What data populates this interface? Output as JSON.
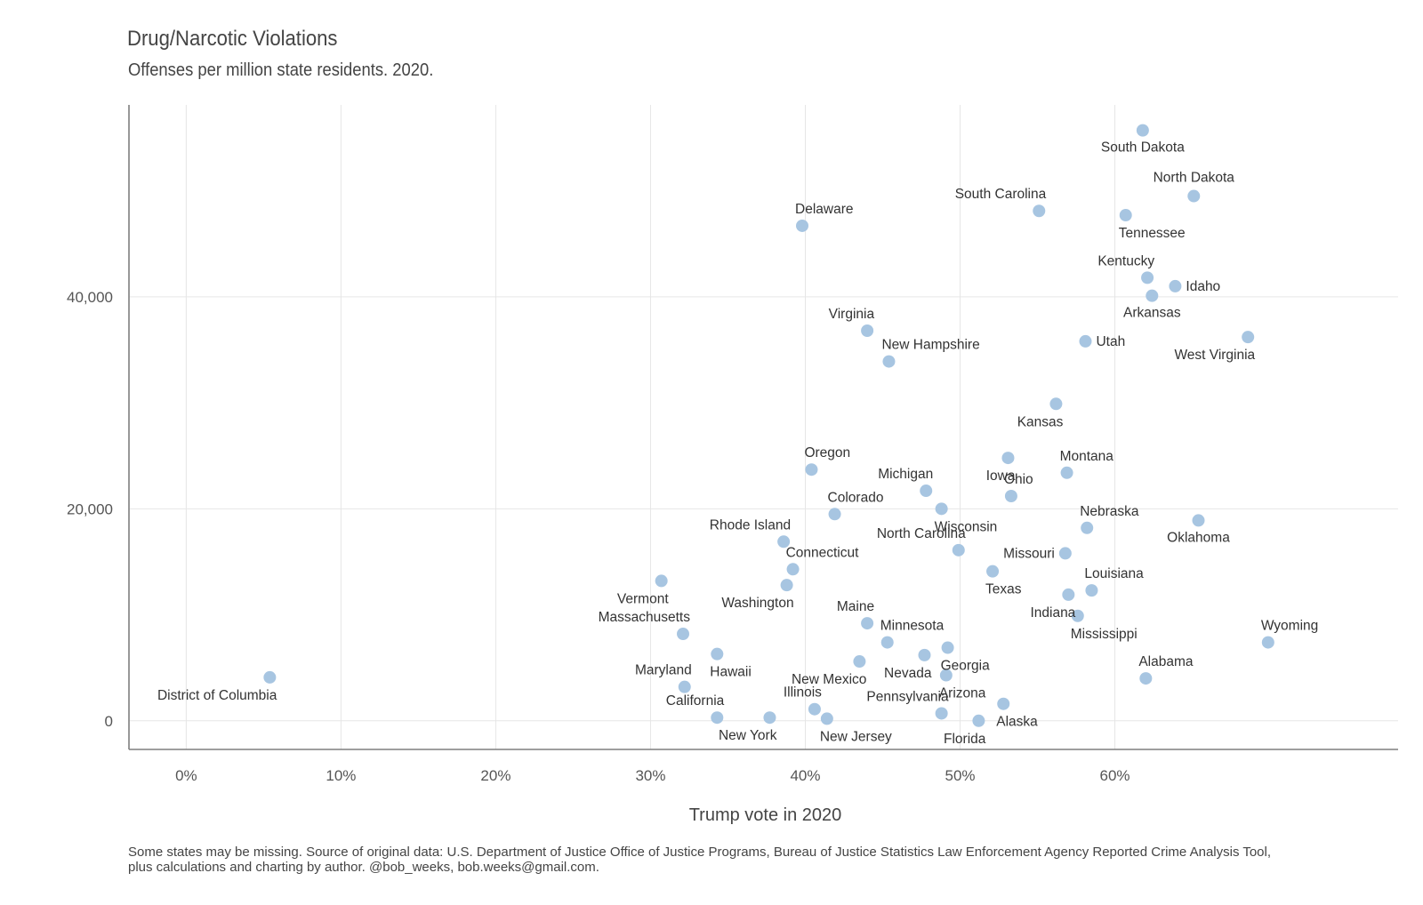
{
  "chart_data": {
    "type": "scatter",
    "title": "Drug/Narcotic Violations",
    "subtitle": "Offenses per million state residents. 2020.",
    "xlabel": "Trump vote in 2020",
    "ylabel": "",
    "x_ticks": [
      "0%",
      "10%",
      "20%",
      "30%",
      "40%",
      "50%",
      "60%"
    ],
    "x_tick_values": [
      0,
      10,
      20,
      30,
      40,
      50,
      60
    ],
    "y_ticks": [
      "0",
      "20,000",
      "40,000"
    ],
    "y_tick_values": [
      0,
      20000,
      40000
    ],
    "xlim": [
      -3.7,
      78.3
    ],
    "ylim": [
      -2700,
      58100
    ],
    "grid": true,
    "legend": "none",
    "point_color": "#a7c5e1",
    "points": [
      {
        "label": "South Dakota",
        "x": 61.8,
        "y": 55700,
        "lp": "below"
      },
      {
        "label": "North Dakota",
        "x": 65.1,
        "y": 49500,
        "lp": "above"
      },
      {
        "label": "South Carolina",
        "x": 55.1,
        "y": 48100,
        "lp": "above-left"
      },
      {
        "label": "Tennessee",
        "x": 60.7,
        "y": 47700,
        "lp": "below-right"
      },
      {
        "label": "Delaware",
        "x": 39.8,
        "y": 46700,
        "lp": "above-right"
      },
      {
        "label": "Kentucky",
        "x": 62.1,
        "y": 41800,
        "lp": "above-left"
      },
      {
        "label": "Idaho",
        "x": 63.9,
        "y": 41000,
        "lp": "right"
      },
      {
        "label": "Arkansas",
        "x": 62.4,
        "y": 40100,
        "lp": "below"
      },
      {
        "label": "Virginia",
        "x": 44.0,
        "y": 36800,
        "lp": "above-left"
      },
      {
        "label": "West Virginia",
        "x": 68.6,
        "y": 36200,
        "lp": "below-left"
      },
      {
        "label": "Utah",
        "x": 58.1,
        "y": 35800,
        "lp": "right"
      },
      {
        "label": "New Hampshire",
        "x": 45.4,
        "y": 33900,
        "lp": "above-right"
      },
      {
        "label": "Kansas",
        "x": 56.2,
        "y": 29900,
        "lp": "below-left"
      },
      {
        "label": "Iowa",
        "x": 53.1,
        "y": 24800,
        "lp": "below-left"
      },
      {
        "label": "Oregon",
        "x": 40.4,
        "y": 23700,
        "lp": "above-right"
      },
      {
        "label": "Montana",
        "x": 56.9,
        "y": 23400,
        "lp": "above-right"
      },
      {
        "label": "Michigan",
        "x": 47.8,
        "y": 21700,
        "lp": "above-left"
      },
      {
        "label": "Ohio",
        "x": 53.3,
        "y": 21200,
        "lp": "above-right"
      },
      {
        "label": "Wisconsin",
        "x": 48.8,
        "y": 20000,
        "lp": "below-right"
      },
      {
        "label": "Colorado",
        "x": 41.9,
        "y": 19500,
        "lp": "above-right"
      },
      {
        "label": "Oklahoma",
        "x": 65.4,
        "y": 18900,
        "lp": "below"
      },
      {
        "label": "Nebraska",
        "x": 58.2,
        "y": 18200,
        "lp": "above-right"
      },
      {
        "label": "Rhode Island",
        "x": 38.6,
        "y": 16900,
        "lp": "above-left"
      },
      {
        "label": "North Carolina",
        "x": 49.9,
        "y": 16100,
        "lp": "above-left"
      },
      {
        "label": "Missouri",
        "x": 56.8,
        "y": 15800,
        "lp": "left"
      },
      {
        "label": "Connecticut",
        "x": 39.2,
        "y": 14300,
        "lp": "above-right"
      },
      {
        "label": "Texas",
        "x": 52.1,
        "y": 14100,
        "lp": "below-right"
      },
      {
        "label": "Vermont",
        "x": 30.7,
        "y": 13200,
        "lp": "below-left"
      },
      {
        "label": "Washington",
        "x": 38.8,
        "y": 12800,
        "lp": "below-left"
      },
      {
        "label": "Louisiana",
        "x": 58.5,
        "y": 12300,
        "lp": "above-right"
      },
      {
        "label": "Indiana",
        "x": 57.0,
        "y": 11900,
        "lp": "below-left"
      },
      {
        "label": "Mississippi",
        "x": 57.6,
        "y": 9900,
        "lp": "below-right"
      },
      {
        "label": "Maine",
        "x": 44.0,
        "y": 9200,
        "lp": "above-left"
      },
      {
        "label": "Massachusetts",
        "x": 32.1,
        "y": 8200,
        "lp": "above-left"
      },
      {
        "label": "Minnesota",
        "x": 45.3,
        "y": 7400,
        "lp": "above-right"
      },
      {
        "label": "Wyoming",
        "x": 69.9,
        "y": 7400,
        "lp": "above-right"
      },
      {
        "label": "Georgia",
        "x": 49.2,
        "y": 6900,
        "lp": "below-right"
      },
      {
        "label": "Hawaii",
        "x": 34.3,
        "y": 6300,
        "lp": "below-right"
      },
      {
        "label": "Nevada",
        "x": 47.7,
        "y": 6200,
        "lp": "below-left"
      },
      {
        "label": "New Mexico",
        "x": 43.5,
        "y": 5600,
        "lp": "below-left"
      },
      {
        "label": "District of Columbia",
        "x": 5.4,
        "y": 4100,
        "lp": "below-left"
      },
      {
        "label": "Arizona",
        "x": 49.1,
        "y": 4300,
        "lp": "below-right"
      },
      {
        "label": "Alabama",
        "x": 62.0,
        "y": 4000,
        "lp": "above-right"
      },
      {
        "label": "Maryland",
        "x": 32.2,
        "y": 3200,
        "lp": "above-left"
      },
      {
        "label": "Alaska",
        "x": 52.8,
        "y": 1600,
        "lp": "below-right"
      },
      {
        "label": "Illinois",
        "x": 40.6,
        "y": 1100,
        "lp": "above-left"
      },
      {
        "label": "Pennsylvania",
        "x": 48.8,
        "y": 700,
        "lp": "above-left"
      },
      {
        "label": "California",
        "x": 34.3,
        "y": 300,
        "lp": "above-left"
      },
      {
        "label": "New York",
        "x": 37.7,
        "y": 300,
        "lp": "below-left"
      },
      {
        "label": "New Jersey",
        "x": 41.4,
        "y": 200,
        "lp": "below-right"
      },
      {
        "label": "Florida",
        "x": 51.2,
        "y": 0,
        "lp": "below-left"
      }
    ]
  },
  "caption": {
    "line1": "Some states may be missing. Source of original data: U.S. Department of Justice Office of Justice Programs, Bureau of Justice Statistics Law Enforcement Agency Reported Crime Analysis Tool,",
    "line2": "plus calculations and charting by author. @bob_weeks, bob.weeks@gmail.com."
  }
}
